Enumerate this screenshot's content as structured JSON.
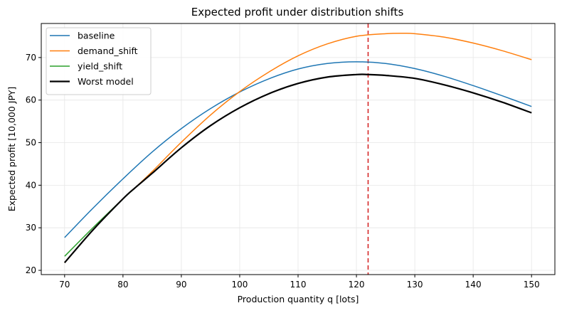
{
  "chart_data": {
    "type": "line",
    "title": "Expected profit under distribution shifts",
    "xlabel": "Production quantity q [lots]",
    "ylabel": "Expected profit [10,000 JPY]",
    "xlim": [
      66,
      154
    ],
    "ylim": [
      19,
      78
    ],
    "xticks": [
      70,
      80,
      90,
      100,
      110,
      120,
      130,
      140,
      150
    ],
    "yticks": [
      20,
      30,
      40,
      50,
      60,
      70
    ],
    "grid": true,
    "legend_position": "top-left",
    "vline": {
      "x": 122,
      "color": "#d62728",
      "style": "dashed"
    },
    "series": [
      {
        "name": "baseline",
        "color": "#1f77b4",
        "width": 1.5,
        "x": [
          70,
          75,
          80,
          85,
          90,
          95,
          100,
          105,
          110,
          115,
          120,
          125,
          130,
          135,
          140,
          145,
          150
        ],
        "y": [
          27.7,
          34.8,
          41.5,
          47.8,
          53.3,
          58.0,
          61.9,
          65.0,
          67.3,
          68.6,
          69.0,
          68.6,
          67.4,
          65.6,
          63.4,
          61.0,
          58.5
        ]
      },
      {
        "name": "demand_shift",
        "color": "#ff7f0e",
        "width": 1.5,
        "x": [
          70,
          75,
          80,
          82,
          85,
          90,
          95,
          100,
          105,
          110,
          115,
          120,
          125,
          128,
          130,
          135,
          140,
          145,
          150
        ],
        "y": [
          21.8,
          29.7,
          36.8,
          39.3,
          43.2,
          50.1,
          56.5,
          62.0,
          66.6,
          70.4,
          73.2,
          75.0,
          75.6,
          75.7,
          75.6,
          74.8,
          73.4,
          71.6,
          69.5
        ]
      },
      {
        "name": "yield_shift",
        "color": "#2ca02c",
        "width": 1.5,
        "x": [
          70,
          75,
          80,
          82
        ],
        "y": [
          23.3,
          30.2,
          36.8,
          39.3
        ]
      },
      {
        "name": "Worst model",
        "color": "#000000",
        "width": 2.2,
        "x": [
          70,
          75,
          80,
          82,
          85,
          90,
          95,
          100,
          105,
          110,
          115,
          120,
          122,
          125,
          130,
          135,
          140,
          145,
          150
        ],
        "y": [
          21.8,
          29.7,
          36.8,
          39.3,
          42.8,
          48.8,
          54.0,
          58.2,
          61.5,
          63.9,
          65.4,
          66.0,
          66.0,
          65.8,
          65.1,
          63.6,
          61.7,
          59.5,
          57.0
        ]
      }
    ]
  }
}
